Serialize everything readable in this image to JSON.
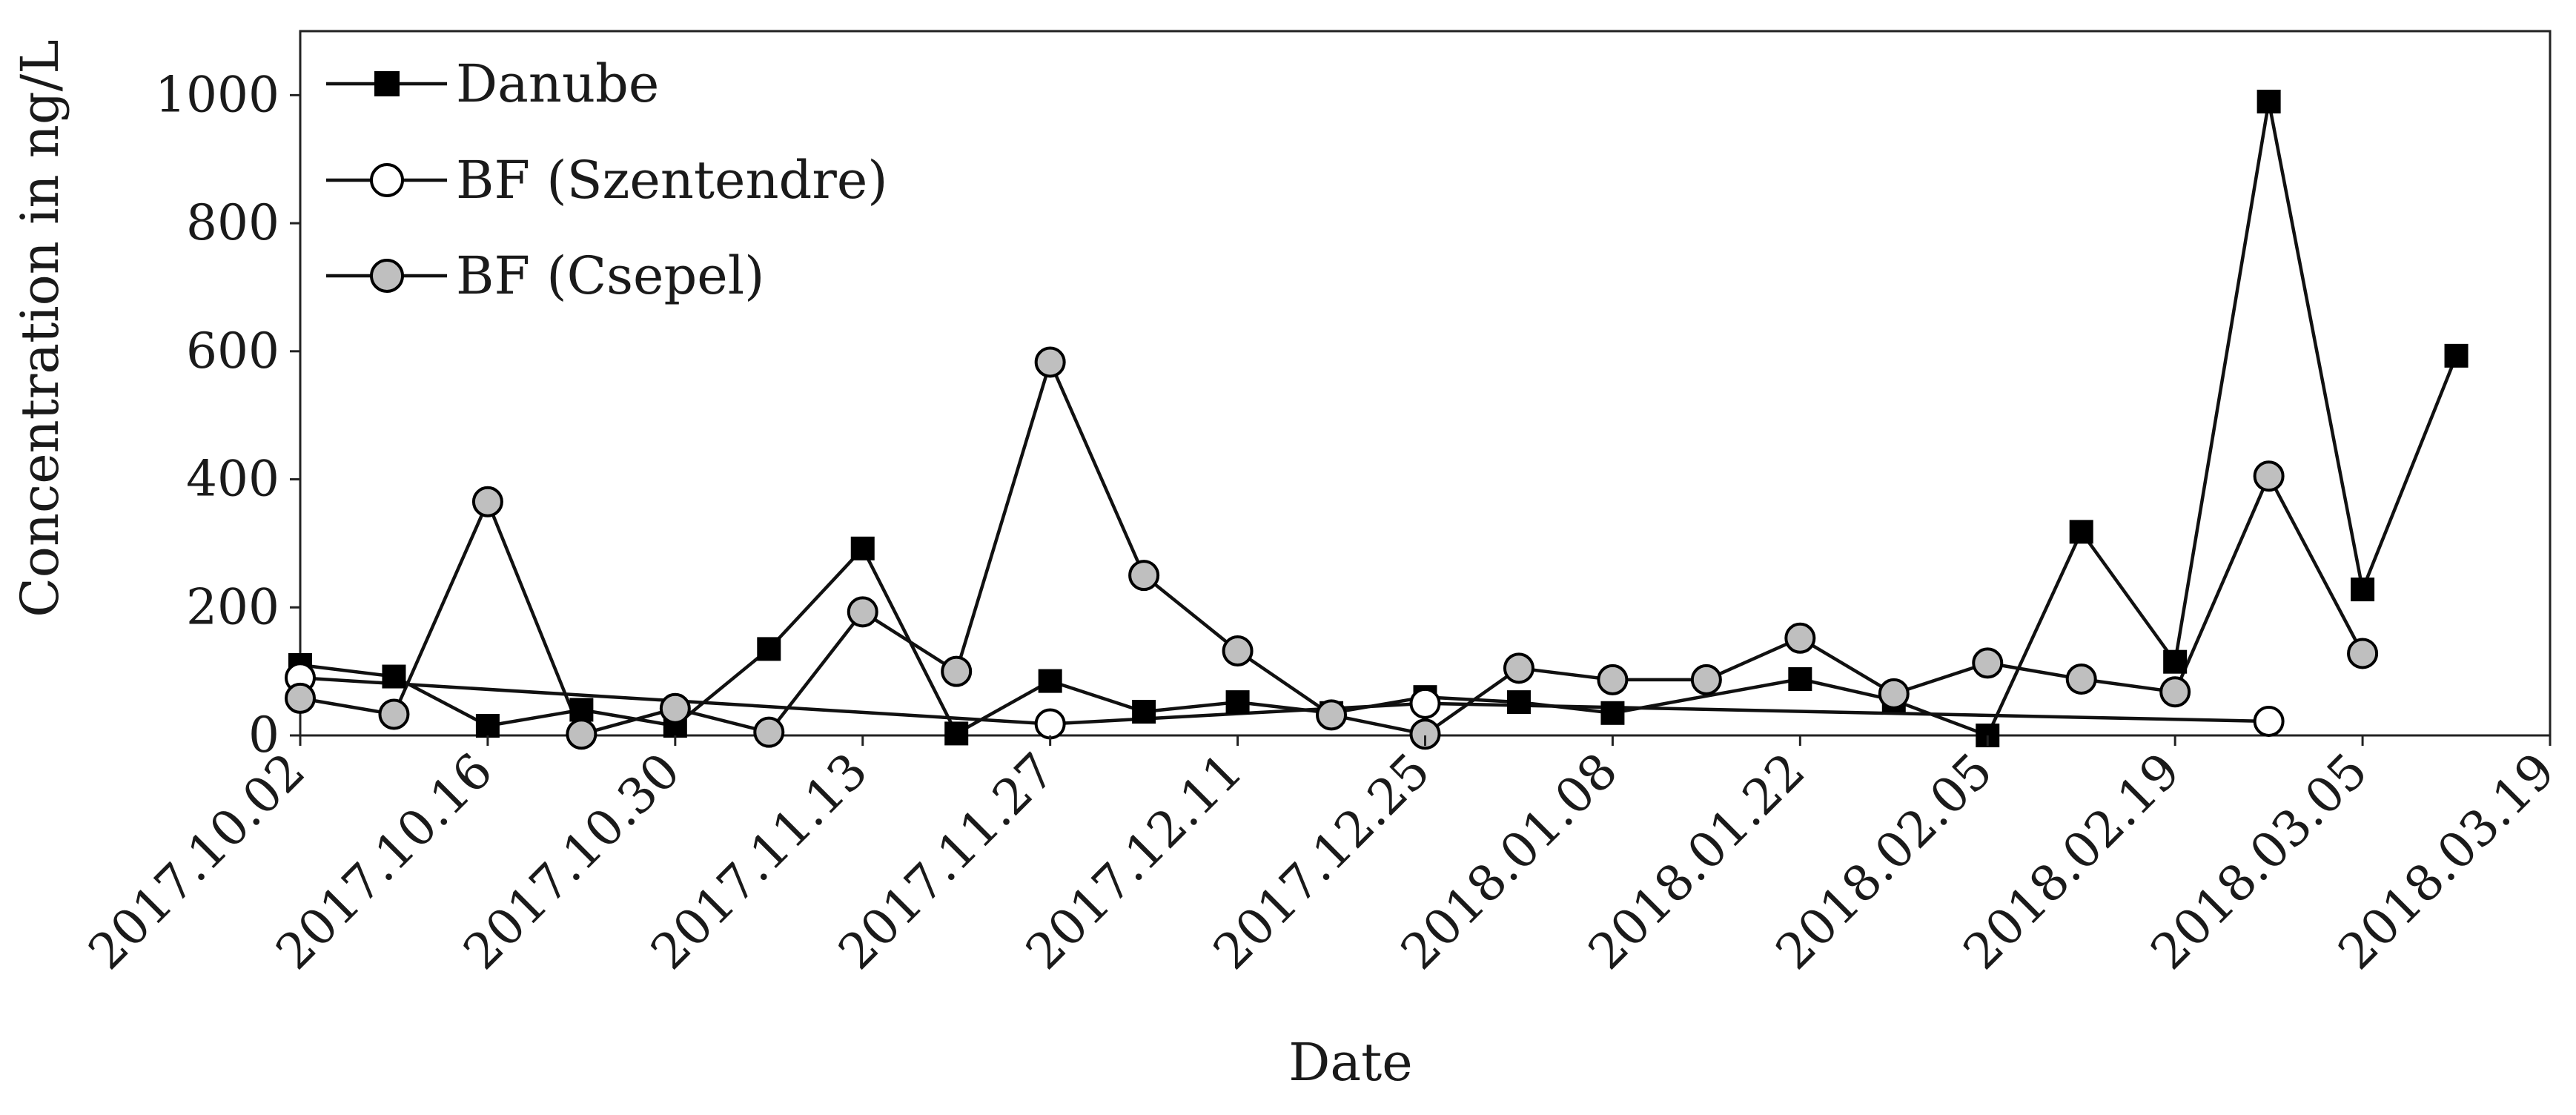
{
  "chart_data": {
    "type": "line",
    "xlabel": "Date",
    "ylabel": "Concentration in ng/L",
    "xlim": [
      "2017.10.02",
      "2018.03.19"
    ],
    "ylim": [
      0,
      1100
    ],
    "x_ticks": [
      "2017.10.02",
      "2017.10.16",
      "2017.10.30",
      "2017.11.13",
      "2017.11.27",
      "2017.12.11",
      "2017.12.25",
      "2018.01.08",
      "2018.01.22",
      "2018.02.05",
      "2018.02.19",
      "2018.03.05",
      "2018.03.19"
    ],
    "y_ticks": [
      "0",
      "200",
      "400",
      "600",
      "800",
      "1000"
    ],
    "grid": false,
    "legend_position": "top-left",
    "series": [
      {
        "name": "Danube",
        "marker": "filled-square",
        "color": "#000000",
        "points": [
          {
            "x": "2017.10.02",
            "y": 110
          },
          {
            "x": "2017.10.09",
            "y": 92
          },
          {
            "x": "2017.10.16",
            "y": 15
          },
          {
            "x": "2017.10.23",
            "y": 40
          },
          {
            "x": "2017.10.30",
            "y": 15
          },
          {
            "x": "2017.11.06",
            "y": 135
          },
          {
            "x": "2017.11.13",
            "y": 292
          },
          {
            "x": "2017.11.20",
            "y": 3
          },
          {
            "x": "2017.11.27",
            "y": 85
          },
          {
            "x": "2017.12.04",
            "y": 37
          },
          {
            "x": "2017.12.11",
            "y": 52
          },
          {
            "x": "2017.12.18",
            "y": 35
          },
          {
            "x": "2017.12.25",
            "y": 60
          },
          {
            "x": "2018.01.01",
            "y": 52
          },
          {
            "x": "2018.01.08",
            "y": 35
          },
          {
            "x": "2018.01.22",
            "y": 88
          },
          {
            "x": "2018.01.29",
            "y": 55
          },
          {
            "x": "2018.02.05",
            "y": 0
          },
          {
            "x": "2018.02.12",
            "y": 318
          },
          {
            "x": "2018.02.19",
            "y": 115
          },
          {
            "x": "2018.02.26",
            "y": 990
          },
          {
            "x": "2018.03.05",
            "y": 228
          },
          {
            "x": "2018.03.12",
            "y": 593
          }
        ]
      },
      {
        "name": "BF (Szentendre)",
        "marker": "open-circle",
        "color": "#ffffff",
        "points": [
          {
            "x": "2017.10.02",
            "y": 90
          },
          {
            "x": "2017.11.27",
            "y": 18
          },
          {
            "x": "2017.12.25",
            "y": 50
          },
          {
            "x": "2018.02.26",
            "y": 22
          }
        ]
      },
      {
        "name": "BF (Csepel)",
        "marker": "gray-circle",
        "color": "#bfbfbf",
        "points": [
          {
            "x": "2017.10.02",
            "y": 58
          },
          {
            "x": "2017.10.09",
            "y": 33
          },
          {
            "x": "2017.10.16",
            "y": 365
          },
          {
            "x": "2017.10.23",
            "y": 2
          },
          {
            "x": "2017.10.30",
            "y": 42
          },
          {
            "x": "2017.11.06",
            "y": 5
          },
          {
            "x": "2017.11.13",
            "y": 193
          },
          {
            "x": "2017.11.20",
            "y": 100
          },
          {
            "x": "2017.11.27",
            "y": 583
          },
          {
            "x": "2017.12.04",
            "y": 250
          },
          {
            "x": "2017.12.11",
            "y": 132
          },
          {
            "x": "2017.12.18",
            "y": 32
          },
          {
            "x": "2017.12.25",
            "y": 2
          },
          {
            "x": "2018.01.01",
            "y": 105
          },
          {
            "x": "2018.01.08",
            "y": 87
          },
          {
            "x": "2018.01.15",
            "y": 87
          },
          {
            "x": "2018.01.22",
            "y": 152
          },
          {
            "x": "2018.01.29",
            "y": 65
          },
          {
            "x": "2018.02.05",
            "y": 113
          },
          {
            "x": "2018.02.12",
            "y": 88
          },
          {
            "x": "2018.02.19",
            "y": 68
          },
          {
            "x": "2018.02.26",
            "y": 405
          },
          {
            "x": "2018.03.05",
            "y": 128
          }
        ]
      }
    ]
  }
}
